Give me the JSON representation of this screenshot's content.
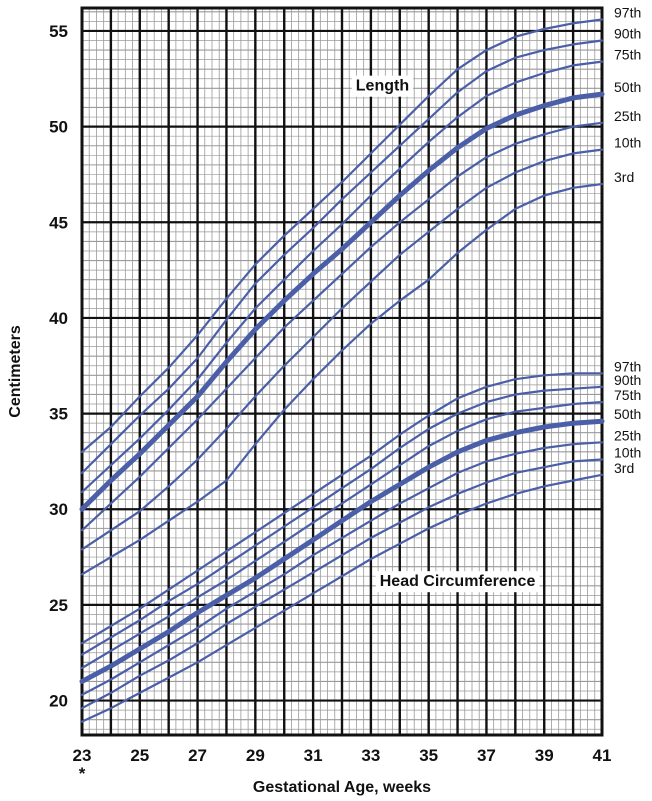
{
  "chart_data": {
    "type": "line",
    "xlabel": "Gestational Age, weeks",
    "ylabel": "Centimeters",
    "x_footnote": "*",
    "xlim": [
      23,
      41
    ],
    "ylim": [
      18.2,
      56.2
    ],
    "x_ticks": [
      "23",
      "25",
      "27",
      "29",
      "31",
      "33",
      "35",
      "37",
      "39",
      "41"
    ],
    "y_ticks": [
      "20",
      "25",
      "30",
      "35",
      "40",
      "45",
      "50",
      "55"
    ],
    "grid": true,
    "colors": {
      "line": "#4a5fa8",
      "major_grid": "#111111",
      "minor_grid": "#9a9a9a"
    },
    "groups": [
      {
        "label": "Length",
        "label_pos": [
          33.4,
          52.1
        ],
        "x": [
          23,
          24,
          25,
          26,
          27,
          28,
          29,
          30,
          31,
          32,
          33,
          34,
          35,
          36,
          37,
          38,
          39,
          40,
          41
        ],
        "series": [
          {
            "name": "97th",
            "bold": false,
            "values": [
              33.0,
              34.3,
              35.9,
              37.4,
              39.1,
              41.0,
              42.8,
              44.3,
              45.7,
              47.1,
              48.6,
              50.1,
              51.6,
              53.0,
              54.0,
              54.7,
              55.1,
              55.4,
              55.6
            ]
          },
          {
            "name": "90th",
            "bold": false,
            "values": [
              31.9,
              33.4,
              34.9,
              36.3,
              37.9,
              39.9,
              41.8,
              43.3,
              44.7,
              46.2,
              47.6,
              49.0,
              50.4,
              51.8,
              52.9,
              53.6,
              54.0,
              54.3,
              54.5
            ]
          },
          {
            "name": "75th",
            "bold": false,
            "values": [
              30.9,
              32.3,
              33.7,
              35.2,
              36.8,
              38.7,
              40.5,
              42.0,
              43.5,
              44.9,
              46.4,
              47.8,
              49.2,
              50.5,
              51.6,
              52.3,
              52.8,
              53.2,
              53.4
            ]
          },
          {
            "name": "50th",
            "bold": true,
            "values": [
              30.0,
              31.5,
              32.9,
              34.4,
              35.9,
              37.7,
              39.4,
              40.9,
              42.3,
              43.6,
              45.0,
              46.4,
              47.7,
              48.9,
              49.9,
              50.6,
              51.1,
              51.5,
              51.7
            ]
          },
          {
            "name": "25th",
            "bold": false,
            "values": [
              28.9,
              30.3,
              31.7,
              33.2,
              34.7,
              36.3,
              37.9,
              39.5,
              40.9,
              42.3,
              43.7,
              45.0,
              46.2,
              47.4,
              48.4,
              49.1,
              49.6,
              50.0,
              50.2
            ]
          },
          {
            "name": "10th",
            "bold": false,
            "values": [
              27.9,
              28.9,
              29.9,
              31.2,
              32.6,
              34.2,
              35.9,
              37.5,
              39.0,
              40.5,
              41.9,
              43.3,
              44.5,
              45.7,
              46.8,
              47.6,
              48.2,
              48.6,
              48.8
            ]
          },
          {
            "name": "3rd",
            "bold": false,
            "values": [
              26.6,
              27.5,
              28.4,
              29.4,
              30.4,
              31.5,
              33.4,
              35.2,
              36.8,
              38.3,
              39.7,
              40.9,
              42.0,
              43.4,
              44.6,
              45.7,
              46.4,
              46.8,
              47.0
            ]
          }
        ]
      },
      {
        "label": "Head Circumference",
        "label_pos": [
          36.0,
          26.2
        ],
        "x": [
          23,
          24,
          25,
          26,
          27,
          28,
          29,
          30,
          31,
          32,
          33,
          34,
          35,
          36,
          37,
          38,
          39,
          40,
          41
        ],
        "series": [
          {
            "name": "97th",
            "bold": false,
            "values": [
              23.0,
              23.9,
              24.8,
              25.8,
              26.8,
              27.8,
              28.8,
              29.8,
              30.8,
              31.8,
              32.8,
              33.9,
              34.9,
              35.8,
              36.4,
              36.8,
              37.0,
              37.1,
              37.1
            ]
          },
          {
            "name": "90th",
            "bold": false,
            "values": [
              22.4,
              23.3,
              24.2,
              25.2,
              26.1,
              27.1,
              28.1,
              29.1,
              30.1,
              31.1,
              32.1,
              33.2,
              34.2,
              35.0,
              35.6,
              36.0,
              36.2,
              36.3,
              36.4
            ]
          },
          {
            "name": "75th",
            "bold": false,
            "values": [
              21.7,
              22.6,
              23.5,
              24.4,
              25.4,
              26.3,
              27.3,
              28.3,
              29.3,
              30.3,
              31.3,
              32.3,
              33.3,
              34.1,
              34.7,
              35.1,
              35.3,
              35.5,
              35.6
            ]
          },
          {
            "name": "50th",
            "bold": true,
            "values": [
              21.0,
              21.8,
              22.7,
              23.6,
              24.6,
              25.5,
              26.4,
              27.4,
              28.4,
              29.4,
              30.4,
              31.3,
              32.2,
              33.0,
              33.6,
              34.0,
              34.3,
              34.5,
              34.6
            ]
          },
          {
            "name": "25th",
            "bold": false,
            "values": [
              20.3,
              21.1,
              22.0,
              22.9,
              23.8,
              24.8,
              25.7,
              26.6,
              27.6,
              28.5,
              29.4,
              30.3,
              31.1,
              31.9,
              32.5,
              32.9,
              33.2,
              33.4,
              33.5
            ]
          },
          {
            "name": "10th",
            "bold": false,
            "values": [
              19.6,
              20.4,
              21.3,
              22.1,
              23.0,
              24.0,
              24.9,
              25.8,
              26.7,
              27.6,
              28.5,
              29.3,
              30.1,
              30.8,
              31.4,
              31.9,
              32.2,
              32.5,
              32.6
            ]
          },
          {
            "name": "3rd",
            "bold": false,
            "values": [
              18.9,
              19.6,
              20.4,
              21.2,
              22.0,
              22.9,
              23.8,
              24.7,
              25.6,
              26.5,
              27.4,
              28.2,
              29.0,
              29.7,
              30.3,
              30.8,
              31.2,
              31.5,
              31.8
            ]
          }
        ]
      }
    ]
  }
}
